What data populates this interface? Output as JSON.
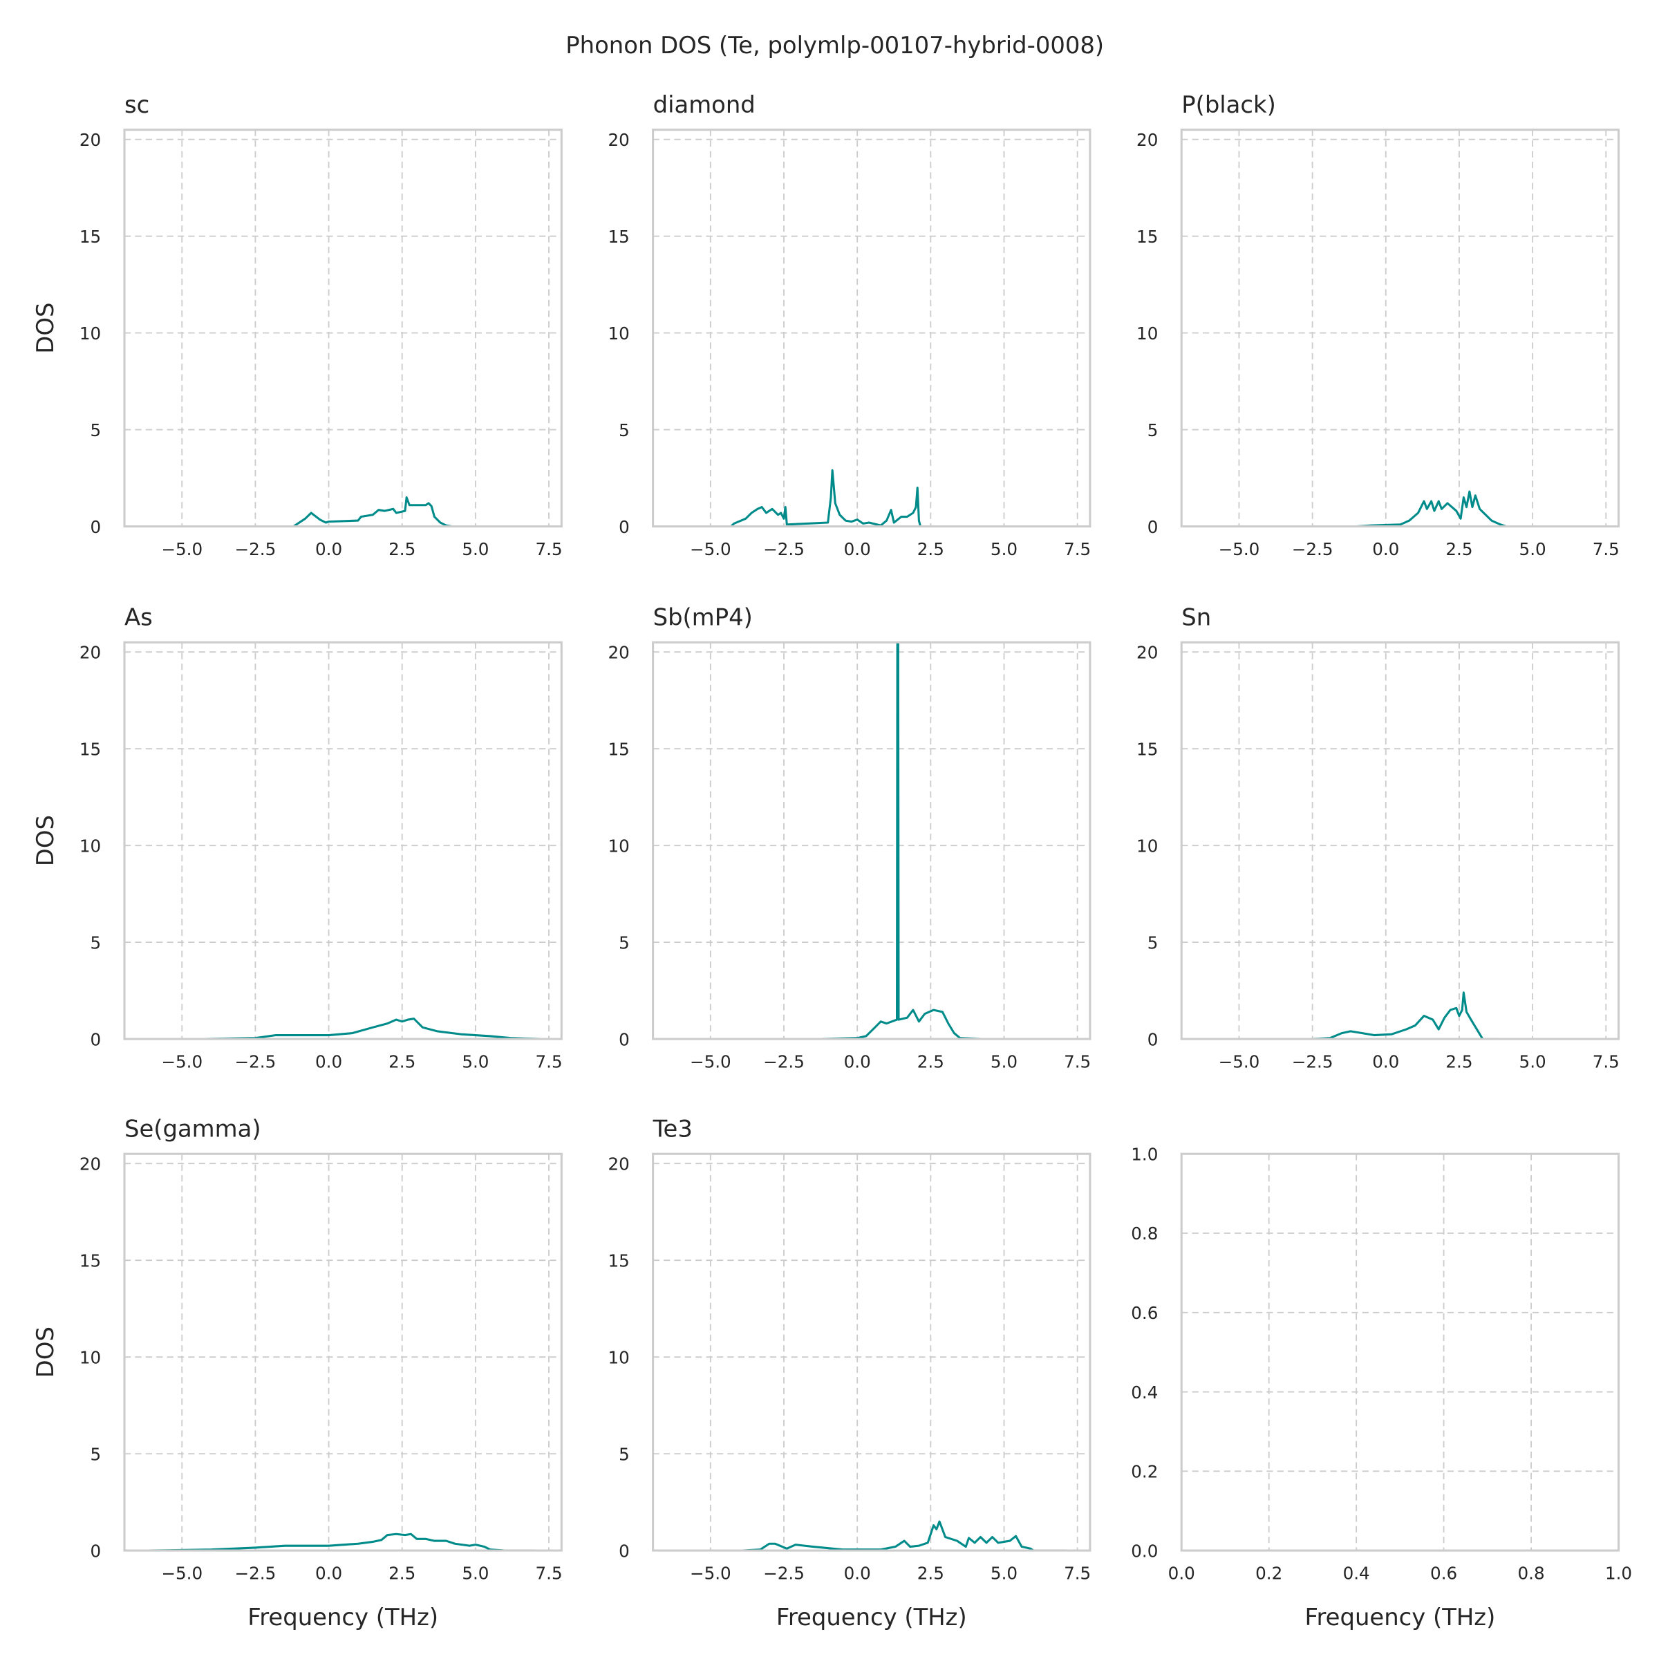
{
  "chart_data": {
    "type": "line",
    "title": "Phonon DOS (Te, polymlp-00107-hybrid-0008)",
    "line_color": "#008b8b",
    "grid": true,
    "grid_color": "#cccccc",
    "xlabel": "Frequency (THz)",
    "ylabel": "DOS",
    "xlim": [
      -6.96,
      7.93
    ],
    "ylim": [
      0,
      20.5
    ],
    "xticks": [
      -5,
      -2.5,
      0,
      2.5,
      5,
      7.5
    ],
    "xtick_labels": [
      "−5.0",
      "−2.5",
      "0.0",
      "2.5",
      "5.0",
      "7.5"
    ],
    "yticks": [
      0,
      5,
      10,
      15,
      20
    ],
    "ytick_labels": [
      "0",
      "5",
      "10",
      "15",
      "20"
    ],
    "panels": [
      {
        "title": "sc",
        "points": [
          [
            -1.2,
            0
          ],
          [
            -0.8,
            0.4
          ],
          [
            -0.6,
            0.7
          ],
          [
            -0.3,
            0.35
          ],
          [
            -0.1,
            0.2
          ],
          [
            0,
            0.25
          ],
          [
            1.0,
            0.3
          ],
          [
            1.1,
            0.5
          ],
          [
            1.5,
            0.6
          ],
          [
            1.7,
            0.85
          ],
          [
            1.9,
            0.8
          ],
          [
            2.2,
            0.9
          ],
          [
            2.3,
            0.7
          ],
          [
            2.6,
            0.8
          ],
          [
            2.65,
            1.5
          ],
          [
            2.75,
            1.1
          ],
          [
            3.3,
            1.1
          ],
          [
            3.4,
            1.2
          ],
          [
            3.5,
            1.05
          ],
          [
            3.6,
            0.5
          ],
          [
            3.8,
            0.2
          ],
          [
            4.0,
            0.05
          ],
          [
            4.2,
            0
          ]
        ]
      },
      {
        "title": "diamond",
        "points": [
          [
            -4.3,
            0
          ],
          [
            -4.2,
            0.15
          ],
          [
            -3.8,
            0.4
          ],
          [
            -3.6,
            0.7
          ],
          [
            -3.4,
            0.9
          ],
          [
            -3.25,
            1.0
          ],
          [
            -3.1,
            0.7
          ],
          [
            -2.9,
            0.9
          ],
          [
            -2.7,
            0.6
          ],
          [
            -2.6,
            0.7
          ],
          [
            -2.5,
            0.4
          ],
          [
            -2.45,
            1.0
          ],
          [
            -2.4,
            0.1
          ],
          [
            -1.0,
            0.2
          ],
          [
            -0.9,
            1.5
          ],
          [
            -0.85,
            2.9
          ],
          [
            -0.75,
            1.2
          ],
          [
            -0.6,
            0.6
          ],
          [
            -0.4,
            0.3
          ],
          [
            -0.2,
            0.25
          ],
          [
            0.0,
            0.35
          ],
          [
            0.2,
            0.15
          ],
          [
            0.4,
            0.2
          ],
          [
            0.8,
            0.05
          ],
          [
            1.0,
            0.3
          ],
          [
            1.15,
            0.85
          ],
          [
            1.25,
            0.2
          ],
          [
            1.5,
            0.5
          ],
          [
            1.7,
            0.5
          ],
          [
            1.9,
            0.7
          ],
          [
            2.0,
            1.0
          ],
          [
            2.05,
            2.0
          ],
          [
            2.1,
            0.3
          ],
          [
            2.15,
            0
          ]
        ]
      },
      {
        "title": "P(black)",
        "points": [
          [
            -1,
            0
          ],
          [
            -0.5,
            0.05
          ],
          [
            0.5,
            0.1
          ],
          [
            0.8,
            0.3
          ],
          [
            1.1,
            0.7
          ],
          [
            1.3,
            1.3
          ],
          [
            1.4,
            0.9
          ],
          [
            1.55,
            1.3
          ],
          [
            1.65,
            0.8
          ],
          [
            1.8,
            1.3
          ],
          [
            1.9,
            0.9
          ],
          [
            2.1,
            1.2
          ],
          [
            2.4,
            0.8
          ],
          [
            2.55,
            0.4
          ],
          [
            2.65,
            1.5
          ],
          [
            2.75,
            1.0
          ],
          [
            2.85,
            1.8
          ],
          [
            2.95,
            1.0
          ],
          [
            3.05,
            1.6
          ],
          [
            3.2,
            0.9
          ],
          [
            3.4,
            0.6
          ],
          [
            3.6,
            0.3
          ],
          [
            3.9,
            0.1
          ],
          [
            4.1,
            0
          ]
        ]
      },
      {
        "title": "As",
        "points": [
          [
            -4.2,
            0
          ],
          [
            -2.5,
            0.05
          ],
          [
            -1.8,
            0.2
          ],
          [
            0,
            0.2
          ],
          [
            0.8,
            0.3
          ],
          [
            1.5,
            0.6
          ],
          [
            2,
            0.8
          ],
          [
            2.3,
            1.0
          ],
          [
            2.5,
            0.9
          ],
          [
            2.7,
            1.0
          ],
          [
            2.9,
            1.05
          ],
          [
            3.2,
            0.6
          ],
          [
            3.7,
            0.4
          ],
          [
            4.5,
            0.25
          ],
          [
            5.5,
            0.15
          ],
          [
            6.2,
            0.05
          ],
          [
            7.2,
            0
          ]
        ]
      },
      {
        "title": "Sb(mP4)",
        "points": [
          [
            -1.2,
            0
          ],
          [
            0,
            0.05
          ],
          [
            0.3,
            0.15
          ],
          [
            0.6,
            0.6
          ],
          [
            0.8,
            0.9
          ],
          [
            1.0,
            0.8
          ],
          [
            1.35,
            1.0
          ],
          [
            1.37,
            25
          ],
          [
            1.39,
            25
          ],
          [
            1.41,
            1.0
          ],
          [
            1.7,
            1.1
          ],
          [
            1.9,
            1.5
          ],
          [
            2.1,
            0.9
          ],
          [
            2.3,
            1.3
          ],
          [
            2.6,
            1.5
          ],
          [
            2.9,
            1.4
          ],
          [
            3.1,
            0.8
          ],
          [
            3.3,
            0.3
          ],
          [
            3.5,
            0.05
          ],
          [
            4.2,
            0
          ]
        ]
      },
      {
        "title": "Sn",
        "points": [
          [
            -2.5,
            0
          ],
          [
            -1.9,
            0.05
          ],
          [
            -1.5,
            0.3
          ],
          [
            -1.2,
            0.4
          ],
          [
            -0.8,
            0.3
          ],
          [
            -0.4,
            0.2
          ],
          [
            0.2,
            0.25
          ],
          [
            0.7,
            0.5
          ],
          [
            1.0,
            0.7
          ],
          [
            1.3,
            1.2
          ],
          [
            1.6,
            1.0
          ],
          [
            1.8,
            0.5
          ],
          [
            2.0,
            1.1
          ],
          [
            2.2,
            1.5
          ],
          [
            2.4,
            1.6
          ],
          [
            2.5,
            1.2
          ],
          [
            2.6,
            1.5
          ],
          [
            2.65,
            2.4
          ],
          [
            2.75,
            1.4
          ],
          [
            2.9,
            1.0
          ],
          [
            3.1,
            0.5
          ],
          [
            3.3,
            0
          ],
          [
            3.8,
            0
          ]
        ]
      },
      {
        "title": "Se(gamma)",
        "points": [
          [
            -6.1,
            0
          ],
          [
            -4,
            0.05
          ],
          [
            -2.5,
            0.15
          ],
          [
            -1.5,
            0.25
          ],
          [
            0,
            0.25
          ],
          [
            1.0,
            0.35
          ],
          [
            1.5,
            0.45
          ],
          [
            1.8,
            0.55
          ],
          [
            2.0,
            0.8
          ],
          [
            2.3,
            0.85
          ],
          [
            2.6,
            0.8
          ],
          [
            2.8,
            0.85
          ],
          [
            3.0,
            0.6
          ],
          [
            3.3,
            0.6
          ],
          [
            3.6,
            0.5
          ],
          [
            4.0,
            0.5
          ],
          [
            4.3,
            0.35
          ],
          [
            4.8,
            0.25
          ],
          [
            5.0,
            0.3
          ],
          [
            5.3,
            0.2
          ],
          [
            5.5,
            0.05
          ],
          [
            6.0,
            0
          ],
          [
            7.0,
            0
          ]
        ]
      },
      {
        "title": "Te3",
        "points": [
          [
            -3.9,
            0
          ],
          [
            -3.3,
            0.05
          ],
          [
            -3.0,
            0.35
          ],
          [
            -2.8,
            0.35
          ],
          [
            -2.4,
            0.1
          ],
          [
            -2.1,
            0.3
          ],
          [
            -1.8,
            0.25
          ],
          [
            -1.5,
            0.2
          ],
          [
            -0.5,
            0.05
          ],
          [
            0.8,
            0.05
          ],
          [
            1.3,
            0.2
          ],
          [
            1.6,
            0.5
          ],
          [
            1.8,
            0.2
          ],
          [
            2.1,
            0.25
          ],
          [
            2.4,
            0.4
          ],
          [
            2.6,
            1.3
          ],
          [
            2.7,
            1.1
          ],
          [
            2.8,
            1.5
          ],
          [
            3.0,
            0.7
          ],
          [
            3.4,
            0.5
          ],
          [
            3.7,
            0.2
          ],
          [
            3.8,
            0.65
          ],
          [
            4.0,
            0.4
          ],
          [
            4.2,
            0.7
          ],
          [
            4.4,
            0.4
          ],
          [
            4.6,
            0.7
          ],
          [
            4.8,
            0.4
          ],
          [
            5.2,
            0.5
          ],
          [
            5.4,
            0.75
          ],
          [
            5.6,
            0.2
          ],
          [
            5.9,
            0.1
          ],
          [
            6.0,
            0
          ],
          [
            7.1,
            0
          ]
        ]
      }
    ],
    "empty_panel": {
      "xlim": [
        0,
        1
      ],
      "ylim": [
        0,
        1
      ],
      "ticks": [
        0,
        0.2,
        0.4,
        0.6,
        0.8,
        1.0
      ],
      "tick_labels": [
        "0.0",
        "0.2",
        "0.4",
        "0.6",
        "0.8",
        "1.0"
      ]
    }
  }
}
